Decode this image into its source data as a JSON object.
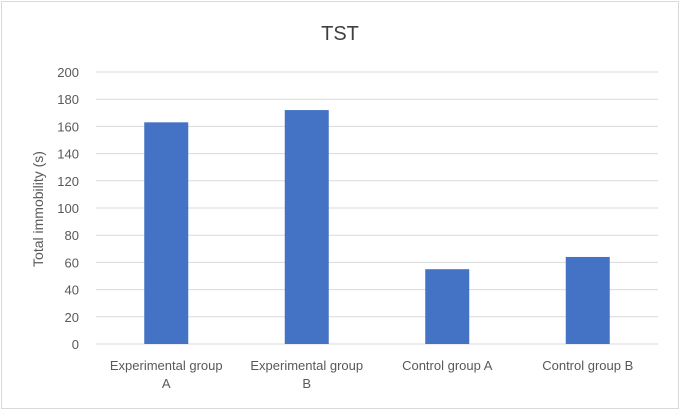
{
  "chart_data": {
    "type": "bar",
    "title": "TST",
    "xlabel": "",
    "ylabel": "Total immobility (s)",
    "ylim": [
      0,
      200
    ],
    "yticks": [
      0,
      20,
      40,
      60,
      80,
      100,
      120,
      140,
      160,
      180,
      200
    ],
    "categories": [
      [
        "Experimental group",
        "A"
      ],
      [
        "Experimental group",
        "B"
      ],
      [
        "Control group A"
      ],
      [
        "Control group B"
      ]
    ],
    "values": [
      163,
      172,
      55,
      64
    ],
    "grid": true,
    "legend": "none",
    "colors": {
      "bar": "#4472C4",
      "grid": "#d9d9d9",
      "text": "#595959"
    }
  }
}
